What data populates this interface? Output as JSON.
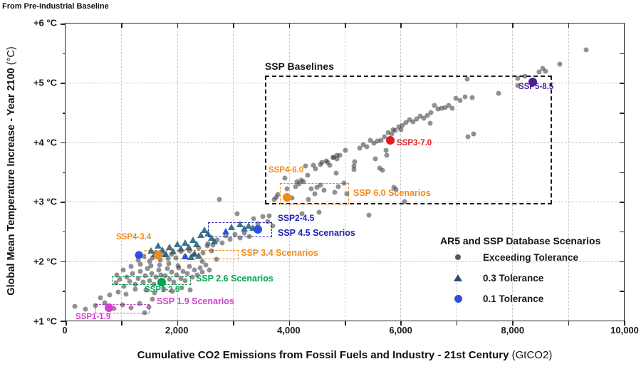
{
  "legend": {
    "title": "AR5 and SSP Database Scenarios",
    "items": [
      {
        "label": "Exceeding Tolerance",
        "marker": "dot",
        "color": "#58585c"
      },
      {
        "label": "0.3 Tolerance",
        "marker": "triangle",
        "color": "#2e4d6e"
      },
      {
        "label": "0.1 Tolerance",
        "marker": "circle",
        "color": "#3050e0"
      }
    ]
  },
  "chart_data": {
    "type": "scatter",
    "top_note": "From Pre-Industrial Baseline",
    "xlabel_main": "Cumulative CO2 Emissions from Fossil Fuels and Industry - 21st Century",
    "xlabel_unit": "(GtCO2)",
    "ylabel_main": "Global Mean Temperature Increase - Year 2100",
    "ylabel_unit": "(°C)",
    "xlim": [
      0,
      10000
    ],
    "ylim": [
      1,
      6
    ],
    "x_ticks": [
      {
        "v": 0,
        "label": "0"
      },
      {
        "v": 2000,
        "label": "2,000"
      },
      {
        "v": 4000,
        "label": "4,000"
      },
      {
        "v": 6000,
        "label": "6,000"
      },
      {
        "v": 8000,
        "label": "8,000"
      },
      {
        "v": 10000,
        "label": "10,000"
      }
    ],
    "x_minor_step": 1000,
    "y_ticks": [
      {
        "t": 1,
        "label": "+1 °C"
      },
      {
        "t": 2,
        "label": "+2 °C"
      },
      {
        "t": 3,
        "label": "+3 °C"
      },
      {
        "t": 4,
        "label": "+4 °C"
      },
      {
        "t": 5,
        "label": "+5 °C"
      },
      {
        "t": 6,
        "label": "+6 °C"
      }
    ],
    "y_minor_step": 0.5,
    "grid": true,
    "series": [
      {
        "name": "Exceeding Tolerance",
        "marker": "dot",
        "size": 7,
        "color": "rgba(55,55,62,0.55)",
        "points": [
          [
            170,
            1.24
          ],
          [
            360,
            1.19
          ],
          [
            540,
            1.25
          ],
          [
            620,
            1.38
          ],
          [
            700,
            1.3
          ],
          [
            790,
            1.43
          ],
          [
            870,
            1.2
          ],
          [
            950,
            1.48
          ],
          [
            1020,
            1.26
          ],
          [
            1090,
            1.44
          ],
          [
            1170,
            1.22
          ],
          [
            1250,
            1.53
          ],
          [
            1330,
            1.29
          ],
          [
            1410,
            1.13
          ],
          [
            1490,
            1.23
          ],
          [
            1560,
            1.36
          ],
          [
            900,
            1.63
          ],
          [
            970,
            1.69
          ],
          [
            1040,
            1.58
          ],
          [
            1100,
            1.73
          ],
          [
            1150,
            1.66
          ],
          [
            1200,
            1.79
          ],
          [
            1250,
            1.61
          ],
          [
            1295,
            1.71
          ],
          [
            1340,
            1.83
          ],
          [
            1385,
            1.65
          ],
          [
            1425,
            1.75
          ],
          [
            1465,
            1.87
          ],
          [
            1505,
            1.67
          ],
          [
            1545,
            1.79
          ],
          [
            1585,
            1.61
          ],
          [
            1625,
            1.73
          ],
          [
            1665,
            1.85
          ],
          [
            1705,
            1.77
          ],
          [
            1745,
            1.63
          ],
          [
            1785,
            1.75
          ],
          [
            1825,
            1.87
          ],
          [
            1865,
            1.69
          ],
          [
            1905,
            1.81
          ],
          [
            1945,
            1.65
          ],
          [
            1985,
            1.77
          ],
          [
            2025,
            1.89
          ],
          [
            2065,
            1.71
          ],
          [
            2105,
            1.83
          ],
          [
            2145,
            1.67
          ],
          [
            2185,
            1.79
          ],
          [
            2225,
            1.91
          ],
          [
            2265,
            1.73
          ],
          [
            2305,
            1.85
          ],
          [
            2355,
            1.77
          ],
          [
            2405,
            1.89
          ],
          [
            2455,
            1.81
          ],
          [
            2515,
            1.93
          ],
          [
            2575,
            1.85
          ],
          [
            1440,
            1.51
          ],
          [
            1600,
            1.47
          ],
          [
            1755,
            1.53
          ],
          [
            1915,
            1.49
          ],
          [
            2075,
            1.55
          ],
          [
            2235,
            1.51
          ],
          [
            1335,
            1.95
          ],
          [
            1175,
            1.91
          ],
          [
            1035,
            1.85
          ],
          [
            915,
            1.77
          ],
          [
            1530,
            1.92
          ],
          [
            1690,
            1.94
          ],
          [
            1850,
            1.96
          ],
          [
            2010,
            1.92
          ],
          [
            1300,
            2.02
          ],
          [
            1400,
            2.08
          ],
          [
            1500,
            1.99
          ],
          [
            1560,
            2.06
          ],
          [
            1620,
            2.14
          ],
          [
            1700,
            2.02
          ],
          [
            1760,
            2.1
          ],
          [
            1840,
            2.04
          ],
          [
            1900,
            2.12
          ],
          [
            1980,
            2.06
          ],
          [
            2060,
            2.16
          ],
          [
            2140,
            2.08
          ],
          [
            2220,
            2.18
          ],
          [
            2300,
            2.1
          ],
          [
            2380,
            2.22
          ],
          [
            2460,
            2.14
          ],
          [
            2540,
            2.26
          ],
          [
            2620,
            2.18
          ],
          [
            2700,
            2.03
          ],
          [
            2450,
            1.99
          ],
          [
            2550,
            2.29
          ],
          [
            2640,
            2.27
          ],
          [
            2720,
            2.35
          ],
          [
            2800,
            2.31
          ],
          [
            2870,
            2.43
          ],
          [
            2950,
            2.37
          ],
          [
            3030,
            2.45
          ],
          [
            3120,
            2.39
          ],
          [
            3200,
            2.47
          ],
          [
            3290,
            2.41
          ],
          [
            3370,
            2.71
          ],
          [
            3450,
            2.63
          ],
          [
            3530,
            2.75
          ],
          [
            3620,
            2.67
          ],
          [
            3710,
            2.59
          ],
          [
            2760,
            3.04
          ],
          [
            3080,
            2.8
          ],
          [
            3650,
            2.76
          ],
          [
            4240,
            2.8
          ],
          [
            4540,
            2.82
          ],
          [
            4060,
            3.06
          ],
          [
            3737,
            3.04
          ],
          [
            3775,
            3.07
          ],
          [
            3801,
            3.12
          ],
          [
            3928,
            3.4
          ],
          [
            3967,
            3.22
          ],
          [
            4120,
            3.25
          ],
          [
            4145,
            3.34
          ],
          [
            4183,
            3.3
          ],
          [
            4222,
            3.36
          ],
          [
            4260,
            3.34
          ],
          [
            4298,
            3.6
          ],
          [
            4336,
            3.45
          ],
          [
            4349,
            3.04
          ],
          [
            4400,
            3.22
          ],
          [
            4438,
            3.61
          ],
          [
            4464,
            3.13
          ],
          [
            4477,
            3.55
          ],
          [
            4502,
            3.24
          ],
          [
            4566,
            3.28
          ],
          [
            4591,
            3.66
          ],
          [
            4630,
            3.19
          ],
          [
            4668,
            3.69
          ],
          [
            4732,
            3.61
          ],
          [
            4796,
            3.75
          ],
          [
            4821,
            3.16
          ],
          [
            4847,
            3.48
          ],
          [
            4859,
            3.72
          ],
          [
            4885,
            3.25
          ],
          [
            4911,
            3.78
          ],
          [
            4987,
            3.31
          ],
          [
            5038,
            3.13
          ],
          [
            5166,
            3.6
          ],
          [
            5270,
            3.9
          ],
          [
            5330,
            3.96
          ],
          [
            5390,
            3.93
          ],
          [
            5460,
            4.03
          ],
          [
            5520,
            3.99
          ],
          [
            5590,
            4.02
          ],
          [
            5650,
            4.03
          ],
          [
            5710,
            4.09
          ],
          [
            5780,
            4.17
          ],
          [
            5840,
            4.14
          ],
          [
            5870,
            4.21
          ],
          [
            5910,
            4.2
          ],
          [
            5970,
            4.26
          ],
          [
            6010,
            4.21
          ],
          [
            6030,
            4.29
          ],
          [
            6100,
            4.33
          ],
          [
            6160,
            4.38
          ],
          [
            6220,
            4.35
          ],
          [
            6290,
            4.39
          ],
          [
            6350,
            4.44
          ],
          [
            6420,
            4.41
          ],
          [
            6480,
            4.45
          ],
          [
            6540,
            4.5
          ],
          [
            6610,
            4.62
          ],
          [
            6670,
            4.56
          ],
          [
            6730,
            4.57
          ],
          [
            6800,
            4.59
          ],
          [
            6860,
            4.62
          ],
          [
            6930,
            4.57
          ],
          [
            6990,
            4.74
          ],
          [
            7160,
            4.77
          ],
          [
            7280,
            4.75
          ],
          [
            5740,
            3.87
          ],
          [
            5620,
            3.57
          ],
          [
            5550,
            3.72
          ],
          [
            5180,
            3.67
          ],
          [
            5160,
            3.54
          ],
          [
            5010,
            3.87
          ],
          [
            4860,
            3.78
          ],
          [
            4800,
            3.75
          ],
          [
            4690,
            3.66
          ],
          [
            4570,
            3.63
          ],
          [
            5750,
            3.78
          ],
          [
            5680,
            3.53
          ],
          [
            7060,
            4.71
          ],
          [
            6530,
            4.32
          ],
          [
            7210,
            4.09
          ],
          [
            7310,
            4.14
          ],
          [
            7750,
            4.82
          ],
          [
            7190,
            5.06
          ],
          [
            8100,
            5.08
          ],
          [
            8100,
            4.96
          ],
          [
            8230,
            5.11
          ],
          [
            8480,
            5.18
          ],
          [
            8540,
            5.24
          ],
          [
            8600,
            5.2
          ],
          [
            8850,
            5.32
          ],
          [
            9320,
            5.56
          ],
          [
            5880,
            3.24
          ],
          [
            5920,
            3.21
          ],
          [
            6070,
            3.0
          ],
          [
            5430,
            2.78
          ]
        ]
      },
      {
        "name": "0.3 Tolerance",
        "marker": "triangle",
        "size": 10,
        "color": "rgba(26,90,125,0.85)",
        "points": [
          [
            1530,
            2.18
          ],
          [
            1600,
            2.12
          ],
          [
            1660,
            2.26
          ],
          [
            1730,
            2.19
          ],
          [
            1800,
            2.11
          ],
          [
            1860,
            2.23
          ],
          [
            1930,
            2.16
          ],
          [
            2000,
            2.28
          ],
          [
            2070,
            2.21
          ],
          [
            2140,
            2.31
          ],
          [
            2210,
            2.24
          ],
          [
            2280,
            2.36
          ],
          [
            2350,
            2.28
          ],
          [
            2420,
            2.44
          ],
          [
            2490,
            2.52
          ],
          [
            2550,
            2.46
          ],
          [
            2610,
            2.39
          ],
          [
            2670,
            2.33
          ],
          [
            2240,
            2.07
          ],
          [
            2310,
            2.13
          ],
          [
            2380,
            2.09
          ],
          [
            2970,
            2.57
          ],
          [
            3120,
            2.62
          ],
          [
            3200,
            2.55
          ],
          [
            3280,
            2.6
          ],
          [
            3360,
            2.56
          ]
        ]
      },
      {
        "name": "0.3 Tolerance highlighted",
        "marker": "triangle",
        "size": 10,
        "color": "#2b50e0",
        "points": [
          [
            2143,
            2.08
          ],
          [
            2870,
            2.5
          ]
        ]
      },
      {
        "name": "0.1 Tolerance",
        "marker": "circle",
        "size": 11,
        "color": "#2b50e0",
        "points": [
          [
            1314,
            2.1
          ]
        ]
      }
    ],
    "scenarios": [
      {
        "id": "SSP1-1.9",
        "x": 780,
        "t": 1.22,
        "color": "#d23fd2"
      },
      {
        "id": "SSP1-2.6",
        "x": 1720,
        "t": 1.65,
        "color": "#00a551"
      },
      {
        "id": "SSP4-3.4",
        "x": 1660,
        "t": 2.1,
        "color": "#ef8a1d"
      },
      {
        "id": "SSP2-4.5",
        "x": 3444,
        "t": 2.53,
        "color": "#2b50e0"
      },
      {
        "id": "SSP4-6.0",
        "x": 3970,
        "t": 3.08,
        "color": "#ef8a1d"
      },
      {
        "id": "SSP3-7.0",
        "x": 5810,
        "t": 4.03,
        "color": "#e11d1d"
      },
      {
        "id": "SSP5-8.5",
        "x": 8370,
        "t": 5.02,
        "color": "#4f1d96"
      }
    ],
    "boxes": [
      {
        "id": "ssp-baselines",
        "x1": 3570,
        "x2": 8710,
        "t1": 2.95,
        "t2": 5.13,
        "color": "#1a1a1a",
        "line": 2
      },
      {
        "id": "ssp-60-scenarios",
        "x1": 3840,
        "x2": 5080,
        "t1": 2.95,
        "t2": 3.31,
        "color": "#ef8a1d",
        "line": 1.6
      },
      {
        "id": "ssp-45-scenarios",
        "x1": 2551,
        "x2": 3699,
        "t1": 2.4,
        "t2": 2.65,
        "color": "#2222b0",
        "line": 1.8
      },
      {
        "id": "ssp-34-scenarios",
        "x1": 1416,
        "x2": 3099,
        "t1": 2.03,
        "t2": 2.19,
        "color": "#ef8a1d",
        "line": 1.6
      },
      {
        "id": "ssp-26-scenarios",
        "x1": 829,
        "x2": 2245,
        "t1": 1.6,
        "t2": 1.74,
        "color": "#00a551",
        "line": 1.8
      },
      {
        "id": "ssp-19-scenarios",
        "x1": 536,
        "x2": 1505,
        "t1": 1.12,
        "t2": 1.28,
        "color": "#d23fd2",
        "line": 1.8
      }
    ],
    "annotations": [
      {
        "text": "SSP Baselines",
        "x": 3570,
        "t": 5.28,
        "color": "#1a1a1a",
        "size": 14
      },
      {
        "text": "SSP4-6.0",
        "x": 3635,
        "t": 3.53,
        "color": "#ef8a1d",
        "size": 11.5
      },
      {
        "text": "SSP 6.0 Scenarios",
        "x": 5153,
        "t": 3.15,
        "color": "#ef8a1d",
        "size": 12.5
      },
      {
        "text": "SSP2-4.5",
        "x": 3801,
        "t": 2.73,
        "color": "#2222b0",
        "size": 12
      },
      {
        "text": "SSP 4.5 Scenarios",
        "x": 3801,
        "t": 2.47,
        "color": "#2222b0",
        "size": 12.5
      },
      {
        "text": "SSP 3.4 Scenarios",
        "x": 3138,
        "t": 2.14,
        "color": "#ef8a1d",
        "size": 12.5
      },
      {
        "text": "SSP 2.6 Scenarios",
        "x": 2334,
        "t": 1.71,
        "color": "#00a551",
        "size": 12.5
      },
      {
        "text": "SSP1-2.6",
        "x": 1416,
        "t": 1.52,
        "color": "#00a551",
        "size": 11.5
      },
      {
        "text": "SSP 1.9 Scenarios",
        "x": 1633,
        "t": 1.32,
        "color": "#d23fd2",
        "size": 12.5
      },
      {
        "text": "SSP1-1.9",
        "x": 179,
        "t": 1.06,
        "color": "#d23fd2",
        "size": 11.5
      },
      {
        "text": "SSP4-3.4",
        "x": 906,
        "t": 2.4,
        "color": "#ef8a1d",
        "size": 11.5
      },
      {
        "text": "SSP3-7.0",
        "x": 5931,
        "t": 3.99,
        "color": "#e11d1d",
        "size": 11.5
      },
      {
        "text": "SSP5-8.5",
        "x": 8112,
        "t": 4.93,
        "color": "#4f1d96",
        "size": 11.5
      }
    ]
  }
}
